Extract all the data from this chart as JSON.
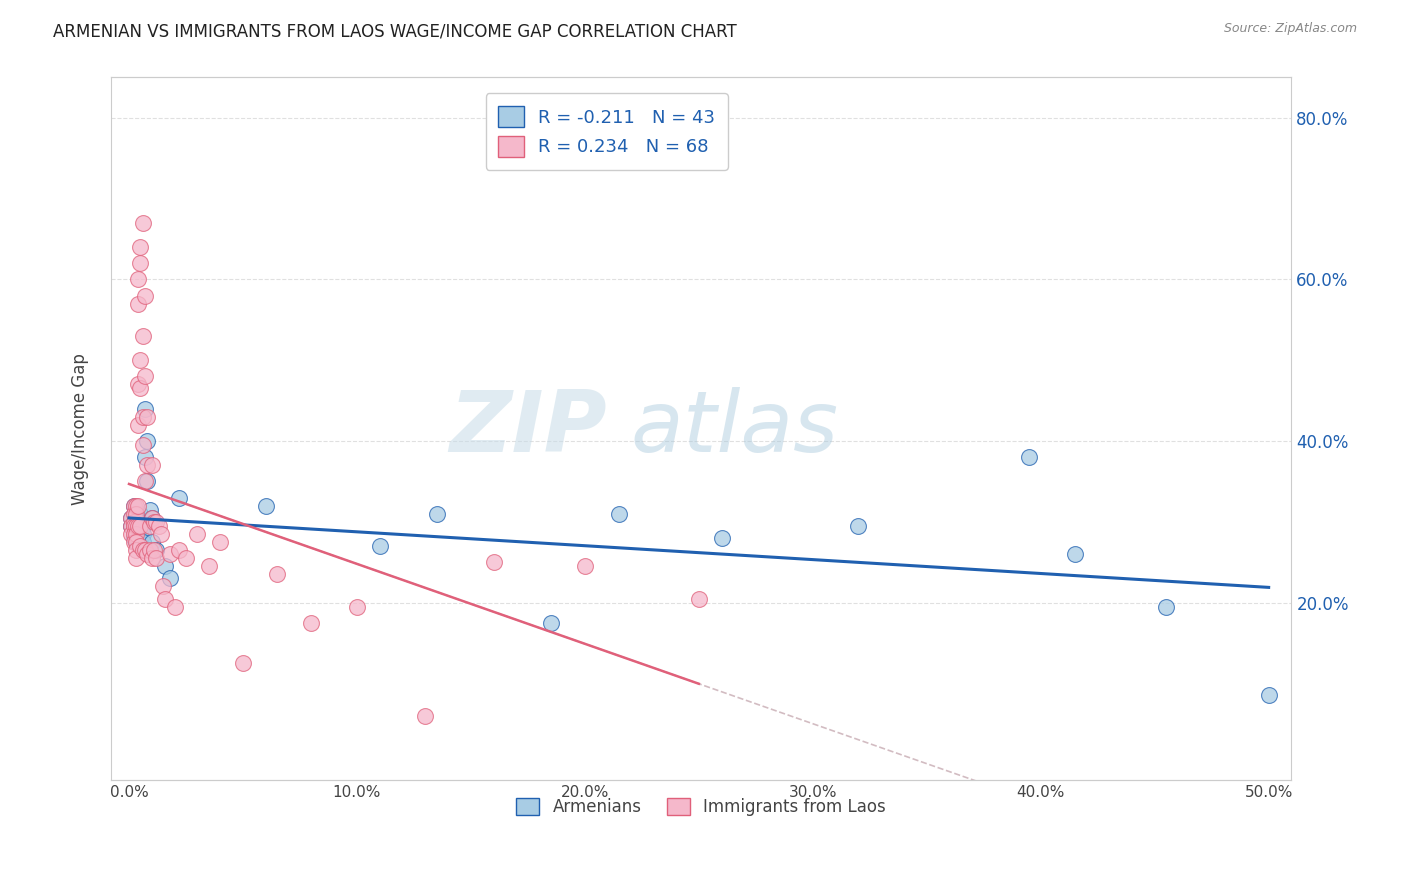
{
  "title": "ARMENIAN VS IMMIGRANTS FROM LAOS WAGE/INCOME GAP CORRELATION CHART",
  "source_text": "Source: ZipAtlas.com",
  "ylabel": "Wage/Income Gap",
  "xlabel_vals": [
    0.0,
    0.1,
    0.2,
    0.3,
    0.4,
    0.5
  ],
  "ylabel_vals_right": [
    0.2,
    0.4,
    0.6,
    0.8
  ],
  "legend_armenian": "R = -0.211   N = 43",
  "legend_laos": "R = 0.234   N = 68",
  "legend_label1": "Armenians",
  "legend_label2": "Immigrants from Laos",
  "armenian_color": "#a8cce4",
  "laos_color": "#f5b8cb",
  "armenian_line_color": "#2060b0",
  "laos_line_color": "#e0607a",
  "watermark_zip": "ZIP",
  "watermark_atlas": "atlas",
  "title_fontsize": 12,
  "source_fontsize": 9,
  "armenians_x": [
    0.001,
    0.001,
    0.002,
    0.002,
    0.002,
    0.003,
    0.003,
    0.003,
    0.003,
    0.004,
    0.004,
    0.004,
    0.004,
    0.005,
    0.005,
    0.005,
    0.005,
    0.005,
    0.006,
    0.006,
    0.006,
    0.007,
    0.007,
    0.008,
    0.008,
    0.009,
    0.01,
    0.01,
    0.012,
    0.016,
    0.018,
    0.022,
    0.06,
    0.11,
    0.135,
    0.185,
    0.215,
    0.26,
    0.32,
    0.395,
    0.415,
    0.455,
    0.5
  ],
  "armenians_y": [
    0.305,
    0.295,
    0.32,
    0.295,
    0.28,
    0.3,
    0.295,
    0.285,
    0.275,
    0.305,
    0.295,
    0.285,
    0.275,
    0.31,
    0.3,
    0.295,
    0.285,
    0.275,
    0.295,
    0.285,
    0.275,
    0.44,
    0.38,
    0.4,
    0.35,
    0.315,
    0.305,
    0.275,
    0.265,
    0.245,
    0.23,
    0.33,
    0.32,
    0.27,
    0.31,
    0.175,
    0.31,
    0.28,
    0.295,
    0.38,
    0.26,
    0.195,
    0.085
  ],
  "laos_x": [
    0.001,
    0.001,
    0.001,
    0.002,
    0.002,
    0.002,
    0.002,
    0.002,
    0.002,
    0.003,
    0.003,
    0.003,
    0.003,
    0.003,
    0.003,
    0.003,
    0.004,
    0.004,
    0.004,
    0.004,
    0.004,
    0.004,
    0.005,
    0.005,
    0.005,
    0.005,
    0.005,
    0.005,
    0.006,
    0.006,
    0.006,
    0.006,
    0.006,
    0.007,
    0.007,
    0.007,
    0.007,
    0.008,
    0.008,
    0.008,
    0.009,
    0.009,
    0.01,
    0.01,
    0.01,
    0.011,
    0.011,
    0.012,
    0.012,
    0.013,
    0.014,
    0.015,
    0.016,
    0.018,
    0.02,
    0.022,
    0.025,
    0.03,
    0.035,
    0.04,
    0.05,
    0.065,
    0.08,
    0.1,
    0.13,
    0.16,
    0.2,
    0.25
  ],
  "laos_y": [
    0.305,
    0.295,
    0.285,
    0.32,
    0.31,
    0.3,
    0.295,
    0.285,
    0.275,
    0.32,
    0.31,
    0.295,
    0.285,
    0.275,
    0.265,
    0.255,
    0.6,
    0.57,
    0.47,
    0.42,
    0.32,
    0.295,
    0.64,
    0.62,
    0.5,
    0.465,
    0.295,
    0.27,
    0.67,
    0.53,
    0.43,
    0.395,
    0.265,
    0.58,
    0.48,
    0.35,
    0.265,
    0.43,
    0.37,
    0.26,
    0.295,
    0.265,
    0.37,
    0.305,
    0.255,
    0.3,
    0.265,
    0.3,
    0.255,
    0.295,
    0.285,
    0.22,
    0.205,
    0.26,
    0.195,
    0.265,
    0.255,
    0.285,
    0.245,
    0.275,
    0.125,
    0.235,
    0.175,
    0.195,
    0.06,
    0.25,
    0.245,
    0.205
  ],
  "xlim": [
    -0.008,
    0.51
  ],
  "ylim": [
    -0.02,
    0.85
  ],
  "background_color": "#ffffff",
  "grid_color": "#cccccc",
  "grid_alpha": 0.6
}
